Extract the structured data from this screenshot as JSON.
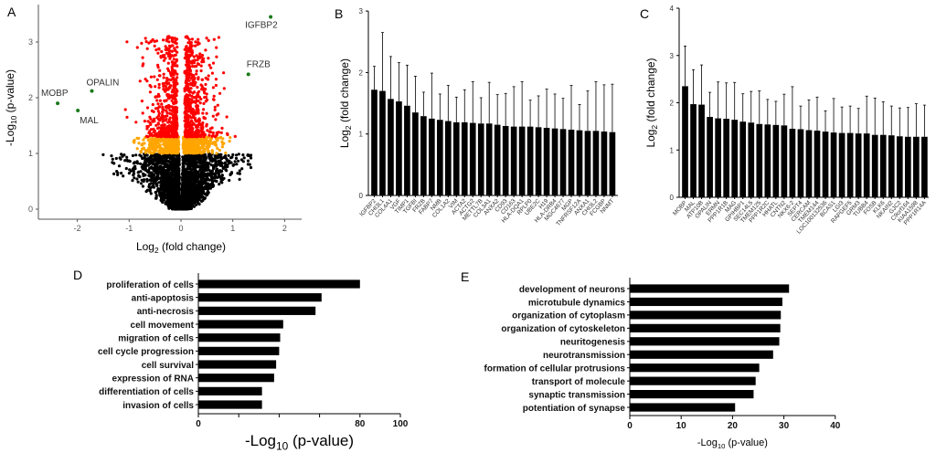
{
  "panels": {
    "a": "A",
    "b": "B",
    "c": "C",
    "d": "D",
    "e": "E"
  },
  "chart_data": [
    {
      "panel": "A",
      "type": "scatter",
      "xlabel_parts": [
        "Log",
        "2",
        " (fold change)"
      ],
      "ylabel_parts": [
        "-Log",
        "10",
        " (p-value)"
      ],
      "xlim": [
        -2.76,
        2.3
      ],
      "ylim": [
        0,
        3.6
      ],
      "xticks": [
        -2,
        -1,
        0,
        1,
        2
      ],
      "yticks": [
        0,
        1,
        2,
        3
      ],
      "colors": {
        "not_significant": "#000000",
        "moderate": "#FFA500",
        "significant": "#FF0000",
        "highlighted": "#1A7A1A"
      },
      "highlighted_genes": [
        {
          "label": "IGFBP2",
          "x": 1.73,
          "y": 3.45
        },
        {
          "label": "FRZB",
          "x": 1.3,
          "y": 2.42
        },
        {
          "label": "OPALIN",
          "x": -1.72,
          "y": 2.12
        },
        {
          "label": "MOBP",
          "x": -2.38,
          "y": 1.9
        },
        {
          "label": "MAL",
          "x": -1.99,
          "y": 1.77
        }
      ]
    },
    {
      "panel": "B",
      "type": "bar",
      "ylabel_parts": [
        "Log",
        "2",
        " (fold change)"
      ],
      "ylim": [
        0,
        3
      ],
      "yticks": [
        0,
        1,
        2,
        3
      ],
      "categories": [
        "IGFBP2",
        "CHI3L1",
        "COL4A1",
        "VGF",
        "TIMP1",
        "TGFBI",
        "FRZB",
        "FABP7",
        "NMB",
        "COL1A2",
        "VIM",
        "ACTA2",
        "ACTG2",
        "METTL7B",
        "COL3A1",
        "ANXA2",
        "CD93",
        "CD163",
        "HLA-DQA1",
        "RPLP0",
        "UBE2C",
        "H19",
        "HLA-DRB4",
        "MGC4677",
        "MGP",
        "TNFRSF12A",
        "ANXA1",
        "CHI3L2",
        "FCGBP",
        "NNMT"
      ],
      "values": [
        1.72,
        1.7,
        1.57,
        1.53,
        1.46,
        1.35,
        1.29,
        1.25,
        1.23,
        1.21,
        1.19,
        1.19,
        1.18,
        1.17,
        1.17,
        1.15,
        1.13,
        1.12,
        1.12,
        1.12,
        1.11,
        1.1,
        1.09,
        1.08,
        1.07,
        1.06,
        1.05,
        1.05,
        1.04,
        1.03
      ],
      "error_upper": [
        2.1,
        2.65,
        2.26,
        2.16,
        2.12,
        1.94,
        1.68,
        1.99,
        1.65,
        1.79,
        1.6,
        1.72,
        1.85,
        1.59,
        1.84,
        1.64,
        1.66,
        1.77,
        1.85,
        1.55,
        1.62,
        1.73,
        1.65,
        1.58,
        1.79,
        1.48,
        1.7,
        1.85,
        1.8,
        1.81
      ]
    },
    {
      "panel": "C",
      "type": "bar",
      "ylabel_parts": [
        "Log",
        "2",
        " (fold change)"
      ],
      "ylim": [
        0,
        4
      ],
      "yticks": [
        0,
        1,
        2,
        3,
        4
      ],
      "categories": [
        "MOBP",
        "MAL",
        "ATP10B",
        "OPALIN",
        "ERMN",
        "PPP1R1B",
        "MAG",
        "GPIHBP1",
        "SEC14L5",
        "TMEM125",
        "PPP1R2C",
        "HHATL",
        "CNTN2",
        "NKX6-2",
        "SEPT4",
        "CERCAM",
        "TMEM144",
        "LOC100132536",
        "BCAS1",
        "LGI3",
        "RAPGEF5",
        "GRM3",
        "TUBB4",
        "FOSB",
        "KLK6",
        "NKAIN2",
        "GJC2",
        "C9orf164",
        "KIAA1598",
        "PPP1R14A"
      ],
      "values": [
        2.35,
        1.97,
        1.96,
        1.7,
        1.67,
        1.66,
        1.64,
        1.6,
        1.58,
        1.55,
        1.54,
        1.53,
        1.52,
        1.45,
        1.44,
        1.42,
        1.41,
        1.39,
        1.37,
        1.36,
        1.36,
        1.35,
        1.35,
        1.32,
        1.32,
        1.31,
        1.29,
        1.28,
        1.28,
        1.28
      ],
      "error_upper": [
        3.2,
        2.7,
        2.8,
        2.22,
        2.44,
        2.42,
        2.43,
        2.19,
        2.24,
        2.25,
        2.07,
        2.03,
        2.18,
        2.34,
        1.93,
        2.06,
        2.12,
        1.83,
        2.09,
        1.91,
        1.93,
        1.88,
        2.14,
        2.1,
        2.02,
        1.93,
        1.89,
        1.9,
        1.98,
        1.95
      ]
    },
    {
      "panel": "D",
      "type": "bar",
      "orientation": "horizontal",
      "xlabel_parts": [
        "-Log",
        "10",
        " (p-value)"
      ],
      "xlim": [
        0,
        100
      ],
      "xticks": [
        0,
        20,
        40,
        60,
        80,
        100
      ],
      "xtick_labels": [
        "0",
        "",
        "",
        "",
        "80",
        "100"
      ],
      "categories": [
        "proliferation of cells",
        "anti-apoptosis",
        "anti-necrosis",
        "cell movement",
        "migration of cells",
        "cell cycle progression",
        "cell survival",
        "expression of RNA",
        "differentiation of cells",
        "invasion of cells"
      ],
      "values": [
        80,
        61,
        58,
        42,
        40.5,
        40,
        38.5,
        37.5,
        31.5,
        31.5
      ]
    },
    {
      "panel": "E",
      "type": "bar",
      "orientation": "horizontal",
      "xlabel_parts": [
        "-Log",
        "10",
        " (p-value)"
      ],
      "xlim": [
        0,
        40
      ],
      "xticks": [
        0,
        10,
        20,
        30,
        40
      ],
      "xtick_labels": [
        "0",
        "10",
        "20",
        "30",
        "40"
      ],
      "categories": [
        "development of neurons",
        "microtubule dynamics",
        "organization of cytoplasm",
        "organization of cytoskeleton",
        "neuritogenesis",
        "neurotransmission",
        "formation of cellular protrusions",
        "transport of molecule",
        "synaptic transmission",
        "potentiation of synapse"
      ],
      "values": [
        31,
        29.7,
        29.4,
        29.3,
        29.1,
        27.9,
        25.2,
        24.5,
        24.1,
        20.5
      ]
    }
  ]
}
